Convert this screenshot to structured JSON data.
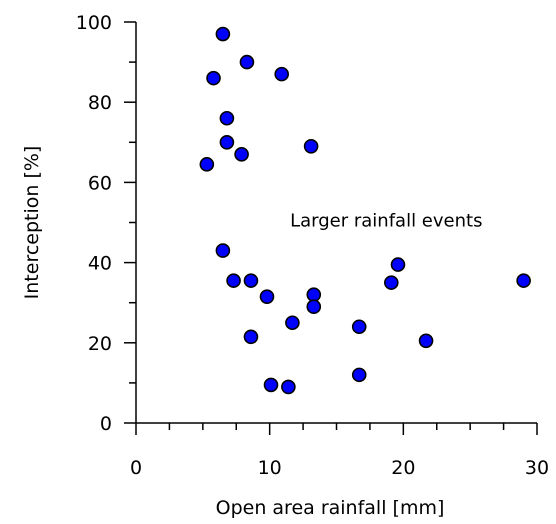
{
  "chart_data": {
    "type": "scatter",
    "xlabel": "Open area rainfall [mm]",
    "ylabel": "Interception [%]",
    "xlim": [
      0,
      30
    ],
    "ylim": [
      0,
      100
    ],
    "x_ticks": [
      "0",
      "10",
      "20",
      "30"
    ],
    "y_ticks": [
      "0",
      "20",
      "40",
      "60",
      "80",
      "100"
    ],
    "x_minor_step": 2.5,
    "y_minor_step": 10,
    "grid": false,
    "legend": "none",
    "marker_color": "#0000ff",
    "marker_edge": "#000000",
    "annotations": [
      {
        "text": "Larger rainfall events",
        "x": 18.8,
        "y": 49
      }
    ],
    "series": [
      {
        "points": [
          {
            "x": 6.5,
            "y": 97
          },
          {
            "x": 8.3,
            "y": 90
          },
          {
            "x": 10.9,
            "y": 87
          },
          {
            "x": 5.8,
            "y": 86
          },
          {
            "x": 6.8,
            "y": 76
          },
          {
            "x": 6.8,
            "y": 70
          },
          {
            "x": 7.9,
            "y": 67
          },
          {
            "x": 13.1,
            "y": 69
          },
          {
            "x": 5.3,
            "y": 64.5
          },
          {
            "x": 6.5,
            "y": 43
          },
          {
            "x": 7.3,
            "y": 35.5
          },
          {
            "x": 8.6,
            "y": 35.5
          },
          {
            "x": 9.8,
            "y": 31.5
          },
          {
            "x": 13.3,
            "y": 32
          },
          {
            "x": 13.3,
            "y": 29
          },
          {
            "x": 11.7,
            "y": 25
          },
          {
            "x": 8.6,
            "y": 21.5
          },
          {
            "x": 16.7,
            "y": 24
          },
          {
            "x": 19.1,
            "y": 35
          },
          {
            "x": 19.6,
            "y": 39.5
          },
          {
            "x": 21.7,
            "y": 20.5
          },
          {
            "x": 29,
            "y": 35.5
          },
          {
            "x": 16.7,
            "y": 12
          },
          {
            "x": 10.1,
            "y": 9.5
          },
          {
            "x": 11.4,
            "y": 9
          }
        ]
      }
    ]
  }
}
